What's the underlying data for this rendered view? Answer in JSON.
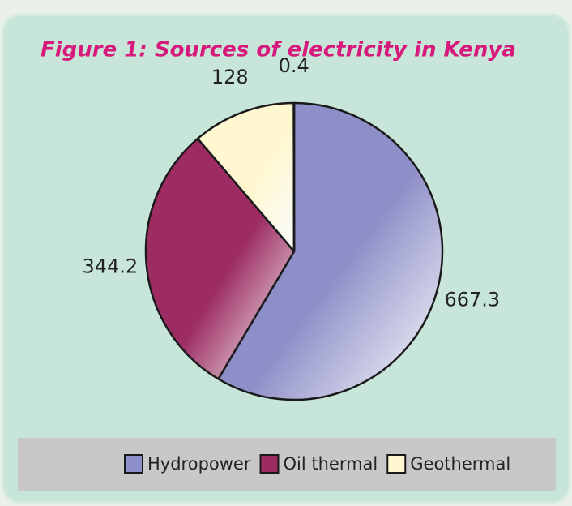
{
  "chart_data": {
    "type": "pie",
    "title": "Figure 1: Sources of electricity in Kenya",
    "categories": [
      "Hydropower",
      "Oil thermal",
      "Geothermal",
      null
    ],
    "values": [
      667.3,
      344.2,
      128,
      0.4
    ],
    "colors": [
      "#8e8ec8",
      "#9c2c62",
      "#fff7cf",
      "#fff7cf"
    ],
    "legend": "bottom"
  }
}
